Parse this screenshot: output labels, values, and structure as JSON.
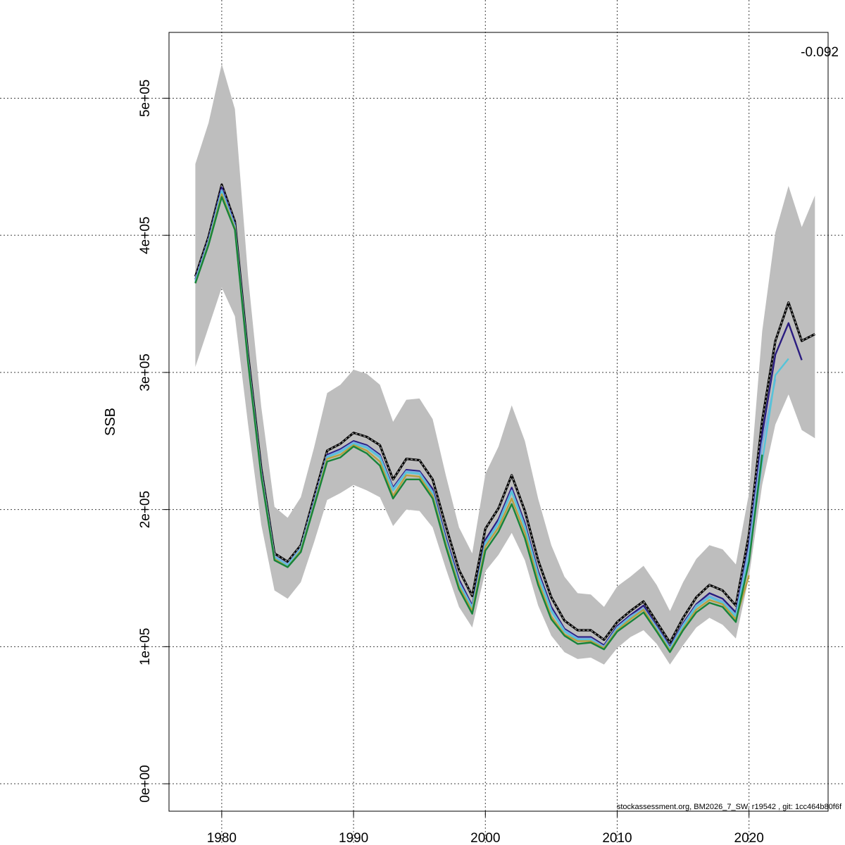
{
  "chart_data": {
    "type": "line",
    "ylabel": "SSB",
    "xlabel": "",
    "title": "",
    "corner_label": "-0.092",
    "footer": "stockassessment.org, BM2026_7_SW, r19542 , git: 1cc464b80f6f",
    "xlim": [
      1976,
      2026
    ],
    "ylim": [
      -20000,
      548000
    ],
    "x_ticks": [
      1980,
      1990,
      2000,
      2010,
      2020
    ],
    "y_ticks": [
      0,
      100000,
      200000,
      300000,
      400000,
      500000
    ],
    "y_tick_labels": [
      "0e+00",
      "1e+05",
      "2e+05",
      "3e+05",
      "4e+05",
      "5e+05"
    ],
    "grid": true,
    "colors": {
      "band": "#bebebe",
      "base_outline": "#000000",
      "base_inner": "#9e9e9e",
      "dark_blue": "#2a1c80",
      "light_blue": "#7aa8e0",
      "cyan": "#56c4d8",
      "olive": "#b8a040",
      "green": "#17843a"
    },
    "confidence_band": {
      "x": [
        1978,
        1979,
        1980,
        1981,
        1982,
        1983,
        1984,
        1985,
        1986,
        1987,
        1988,
        1989,
        1990,
        1991,
        1992,
        1993,
        1994,
        1995,
        1996,
        1997,
        1998,
        1999,
        2000,
        2001,
        2002,
        2003,
        2004,
        2005,
        2006,
        2007,
        2008,
        2009,
        2010,
        2011,
        2012,
        2013,
        2014,
        2015,
        2016,
        2017,
        2018,
        2019,
        2020,
        2021,
        2022,
        2023,
        2024,
        2025
      ],
      "upper": [
        452000,
        482000,
        525000,
        492000,
        370000,
        275000,
        202000,
        194000,
        209000,
        245000,
        285000,
        291000,
        302000,
        299000,
        291000,
        264000,
        280000,
        281000,
        266000,
        225000,
        187000,
        168000,
        226000,
        246000,
        276000,
        250000,
        208000,
        174000,
        151000,
        139000,
        138000,
        129000,
        144000,
        151000,
        159000,
        145000,
        126000,
        147000,
        164000,
        174000,
        171000,
        160000,
        212000,
        330000,
        402000,
        436000,
        406000,
        429000
      ],
      "lower": [
        304000,
        333000,
        362000,
        341000,
        262000,
        189000,
        141000,
        135000,
        147000,
        176000,
        207000,
        212000,
        218000,
        214000,
        209000,
        188000,
        200000,
        199000,
        187000,
        157000,
        129000,
        114000,
        155000,
        167000,
        183000,
        163000,
        130000,
        108000,
        96000,
        91000,
        92000,
        87000,
        99000,
        107000,
        112000,
        102000,
        87000,
        101000,
        114000,
        121000,
        116000,
        106000,
        151000,
        218000,
        262000,
        284000,
        258000,
        252000
      ]
    },
    "series": [
      {
        "name": "",
        "color_key": "base_outline",
        "x": [
          1978,
          1979,
          1980,
          1981,
          1982,
          1983,
          1984,
          1985,
          1986,
          1987,
          1988,
          1989,
          1990,
          1991,
          1992,
          1993,
          1994,
          1995,
          1996,
          1997,
          1998,
          1999,
          2000,
          2001,
          2002,
          2003,
          2004,
          2005,
          2006,
          2007,
          2008,
          2009,
          2010,
          2011,
          2012,
          2013,
          2014,
          2015,
          2016,
          2017,
          2018,
          2019,
          2020,
          2021,
          2022,
          2023,
          2024,
          2025
        ],
        "values": [
          370000,
          399000,
          437000,
          410000,
          313000,
          230000,
          168000,
          162000,
          174000,
          209000,
          243000,
          248000,
          256000,
          253000,
          247000,
          222000,
          237000,
          236000,
          222000,
          188000,
          156000,
          137000,
          186000,
          201000,
          225000,
          199000,
          163000,
          136000,
          119000,
          112000,
          112000,
          105000,
          118000,
          126000,
          133000,
          118000,
          103000,
          121000,
          136000,
          145000,
          141000,
          130000,
          182000,
          265000,
          323000,
          351000,
          323000,
          328000
        ]
      },
      {
        "name": "",
        "color_key": "dark_blue",
        "x": [
          1978,
          1979,
          1980,
          1981,
          1982,
          1983,
          1984,
          1985,
          1986,
          1987,
          1988,
          1989,
          1990,
          1991,
          1992,
          1993,
          1994,
          1995,
          1996,
          1997,
          1998,
          1999,
          2000,
          2001,
          2002,
          2003,
          2004,
          2005,
          2006,
          2007,
          2008,
          2009,
          2010,
          2011,
          2012,
          2013,
          2014,
          2015,
          2016,
          2017,
          2018,
          2019,
          2020,
          2021,
          2022,
          2023,
          2024
        ],
        "values": [
          368000,
          397000,
          435000,
          408000,
          311000,
          228000,
          166000,
          160000,
          172000,
          206000,
          240000,
          244000,
          250000,
          247000,
          240000,
          216000,
          229000,
          228000,
          215000,
          180000,
          149000,
          130000,
          178000,
          193000,
          216000,
          190000,
          155000,
          129000,
          113000,
          107000,
          107000,
          101000,
          115000,
          123000,
          130000,
          115000,
          100000,
          117000,
          131000,
          139000,
          135000,
          125000,
          175000,
          255000,
          313000,
          336000,
          309000
        ]
      },
      {
        "name": "",
        "color_key": "light_blue",
        "x": [
          1978,
          1979,
          1980,
          1981,
          1982,
          1983,
          1984,
          1985,
          1986,
          1987,
          1988,
          1989,
          1990,
          1991,
          1992,
          1993,
          1994,
          1995,
          1996,
          1997,
          1998,
          1999,
          2000,
          2001,
          2002,
          2003,
          2004,
          2005,
          2006,
          2007,
          2008,
          2009,
          2010,
          2011,
          2012,
          2013,
          2014,
          2015,
          2016,
          2017,
          2018,
          2019,
          2020,
          2021,
          2022
        ],
        "values": [
          367000,
          396000,
          433000,
          407000,
          310000,
          227000,
          166000,
          160000,
          172000,
          205000,
          239000,
          243000,
          249000,
          246000,
          239000,
          215000,
          228000,
          227000,
          213000,
          178000,
          147000,
          129000,
          176000,
          191000,
          214000,
          188000,
          153000,
          127000,
          112000,
          106000,
          106000,
          100000,
          114000,
          122000,
          128000,
          114000,
          99000,
          116000,
          130000,
          137000,
          133000,
          123000,
          172000,
          248000,
          295000
        ]
      },
      {
        "name": "",
        "color_key": "cyan",
        "x": [
          1978,
          1979,
          1980,
          1981,
          1982,
          1983,
          1984,
          1985,
          1986,
          1987,
          1988,
          1989,
          1990,
          1991,
          1992,
          1993,
          1994,
          1995,
          1996,
          1997,
          1998,
          1999,
          2000,
          2001,
          2002,
          2003,
          2004,
          2005,
          2006,
          2007,
          2008,
          2009,
          2010,
          2011,
          2012,
          2013,
          2014,
          2015,
          2016,
          2017,
          2018,
          2019,
          2020,
          2021,
          2022,
          2023
        ],
        "values": [
          366000,
          395000,
          432000,
          406000,
          309000,
          226000,
          165000,
          159000,
          171000,
          204000,
          238000,
          242000,
          248000,
          245000,
          238000,
          214000,
          227000,
          226000,
          212000,
          177000,
          146000,
          128000,
          175000,
          190000,
          213000,
          187000,
          152000,
          126000,
          111000,
          105000,
          105000,
          99000,
          113000,
          121000,
          127000,
          113000,
          98000,
          115000,
          129000,
          136000,
          132000,
          122000,
          165000,
          235000,
          298000,
          310000
        ]
      },
      {
        "name": "",
        "color_key": "olive",
        "x": [
          1978,
          1979,
          1980,
          1981,
          1982,
          1983,
          1984,
          1985,
          1986,
          1987,
          1988,
          1989,
          1990,
          1991,
          1992,
          1993,
          1994,
          1995,
          1996,
          1997,
          1998,
          1999,
          2000,
          2001,
          2002,
          2003,
          2004,
          2005,
          2006,
          2007,
          2008,
          2009,
          2010,
          2011,
          2012,
          2013,
          2014,
          2015,
          2016,
          2017,
          2018,
          2019,
          2020
        ],
        "values": [
          365000,
          394000,
          430000,
          405000,
          308000,
          225000,
          164000,
          158000,
          170000,
          203000,
          237000,
          240000,
          247000,
          243000,
          235000,
          210000,
          225000,
          224000,
          210000,
          175000,
          144000,
          126000,
          173000,
          187000,
          208000,
          183000,
          148000,
          122000,
          109000,
          104000,
          104000,
          99000,
          112000,
          120000,
          127000,
          112000,
          97000,
          113000,
          127000,
          134000,
          131000,
          120000,
          152000
        ]
      },
      {
        "name": "",
        "color_key": "green",
        "x": [
          1978,
          1979,
          1980,
          1981,
          1982,
          1983,
          1984,
          1985,
          1986,
          1987,
          1988,
          1989,
          1990,
          1991,
          1992,
          1993,
          1994,
          1995,
          1996,
          1997,
          1998,
          1999,
          2000,
          2001,
          2002,
          2003,
          2004,
          2005,
          2006,
          2007,
          2008,
          2009,
          2010,
          2011,
          2012,
          2013,
          2014,
          2015,
          2016,
          2017,
          2018,
          2019,
          2020,
          2021
        ],
        "values": [
          365000,
          393000,
          428000,
          404000,
          307000,
          224000,
          163000,
          158000,
          169000,
          202000,
          235000,
          238000,
          246000,
          241000,
          232000,
          208000,
          222000,
          222000,
          208000,
          173000,
          142000,
          124000,
          170000,
          184000,
          204000,
          179000,
          145000,
          120000,
          108000,
          102000,
          103000,
          98000,
          111000,
          118000,
          125000,
          111000,
          96000,
          112000,
          125000,
          132000,
          129000,
          118000,
          162000,
          240000
        ]
      }
    ]
  }
}
